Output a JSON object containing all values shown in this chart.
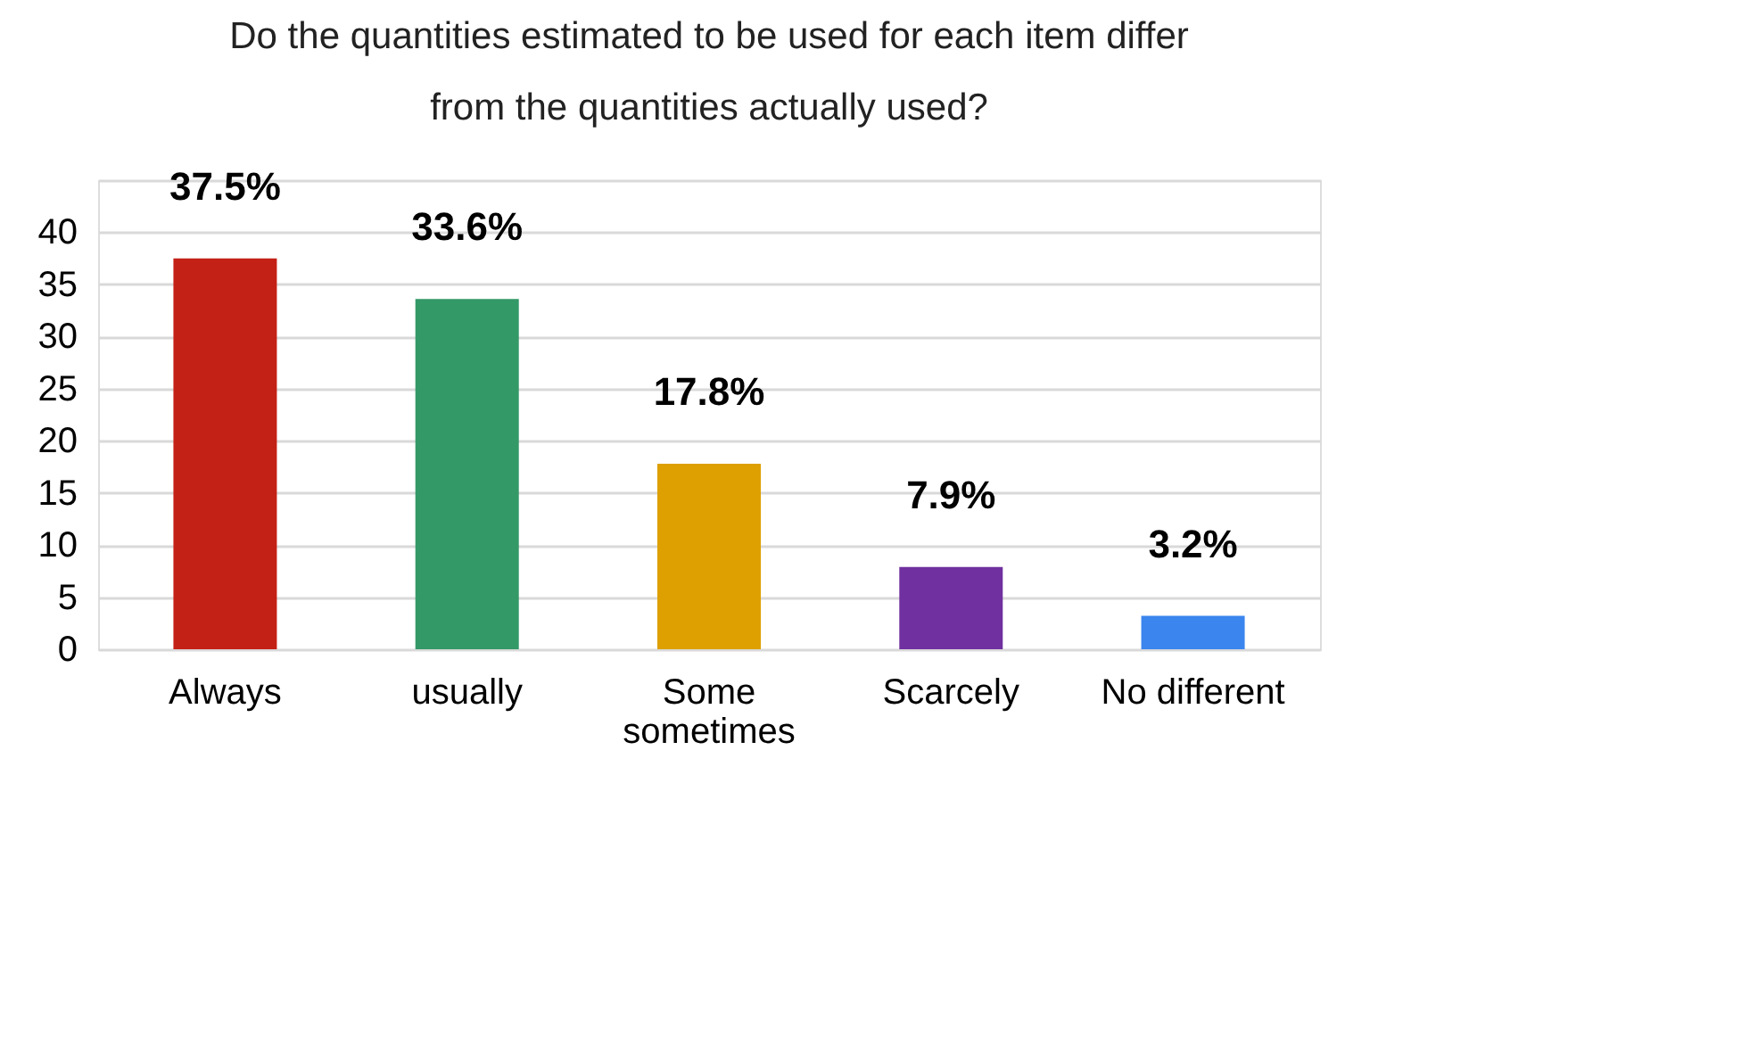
{
  "chart_data": {
    "type": "bar",
    "title": "Do the quantities estimated to be used for each item differ from the quantities actually used?",
    "categories": [
      "Always",
      "usually",
      "Some sometimes",
      "Scarcely",
      "No different"
    ],
    "values": [
      37.5,
      33.6,
      17.8,
      7.9,
      3.2
    ],
    "colors": [
      "#c42116",
      "#339966",
      "#dda000",
      "#7030a0",
      "#3a85ee"
    ],
    "value_labels": [
      "37.5%",
      "33.6%",
      "17.8%",
      "7.9%",
      "3.2%"
    ],
    "ylim": [
      0,
      45
    ],
    "yticks": [
      0,
      5,
      10,
      15,
      20,
      25,
      30,
      35,
      40,
      {
        "value": 45,
        "label": null
      }
    ],
    "grid": "y",
    "legend": false
  }
}
